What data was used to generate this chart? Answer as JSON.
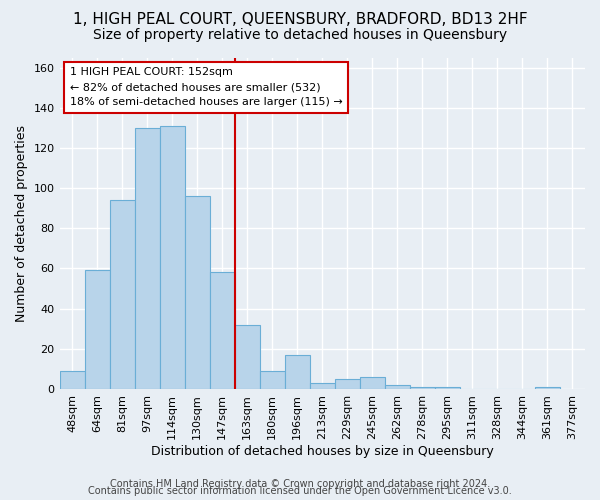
{
  "title": "1, HIGH PEAL COURT, QUEENSBURY, BRADFORD, BD13 2HF",
  "subtitle": "Size of property relative to detached houses in Queensbury",
  "xlabel": "Distribution of detached houses by size in Queensbury",
  "ylabel": "Number of detached properties",
  "bar_labels": [
    "48sqm",
    "64sqm",
    "81sqm",
    "97sqm",
    "114sqm",
    "130sqm",
    "147sqm",
    "163sqm",
    "180sqm",
    "196sqm",
    "213sqm",
    "229sqm",
    "245sqm",
    "262sqm",
    "278sqm",
    "295sqm",
    "311sqm",
    "328sqm",
    "344sqm",
    "361sqm"
  ],
  "all_xtick_labels": [
    "48sqm",
    "64sqm",
    "81sqm",
    "97sqm",
    "114sqm",
    "130sqm",
    "147sqm",
    "163sqm",
    "180sqm",
    "196sqm",
    "213sqm",
    "229sqm",
    "245sqm",
    "262sqm",
    "278sqm",
    "295sqm",
    "311sqm",
    "328sqm",
    "344sqm",
    "361sqm",
    "377sqm"
  ],
  "bar_values": [
    9,
    59,
    94,
    130,
    131,
    96,
    58,
    32,
    9,
    17,
    3,
    5,
    6,
    2,
    1,
    1,
    0,
    0,
    0,
    1
  ],
  "bar_color": "#b8d4ea",
  "bar_edge_color": "#6aaed6",
  "vline_index": 6.5,
  "vline_color": "#cc0000",
  "ylim": [
    0,
    165
  ],
  "yticks": [
    0,
    20,
    40,
    60,
    80,
    100,
    120,
    140,
    160
  ],
  "annotation_title": "1 HIGH PEAL COURT: 152sqm",
  "annotation_line1": "← 82% of detached houses are smaller (532)",
  "annotation_line2": "18% of semi-detached houses are larger (115) →",
  "annotation_box_facecolor": "#ffffff",
  "annotation_box_edgecolor": "#cc0000",
  "footer1": "Contains HM Land Registry data © Crown copyright and database right 2024.",
  "footer2": "Contains public sector information licensed under the Open Government Licence v3.0.",
  "background_color": "#e8eef4",
  "grid_color": "#ffffff",
  "title_fontsize": 11,
  "subtitle_fontsize": 10,
  "axis_label_fontsize": 9,
  "tick_fontsize": 8,
  "footer_fontsize": 7,
  "annotation_fontsize": 8
}
